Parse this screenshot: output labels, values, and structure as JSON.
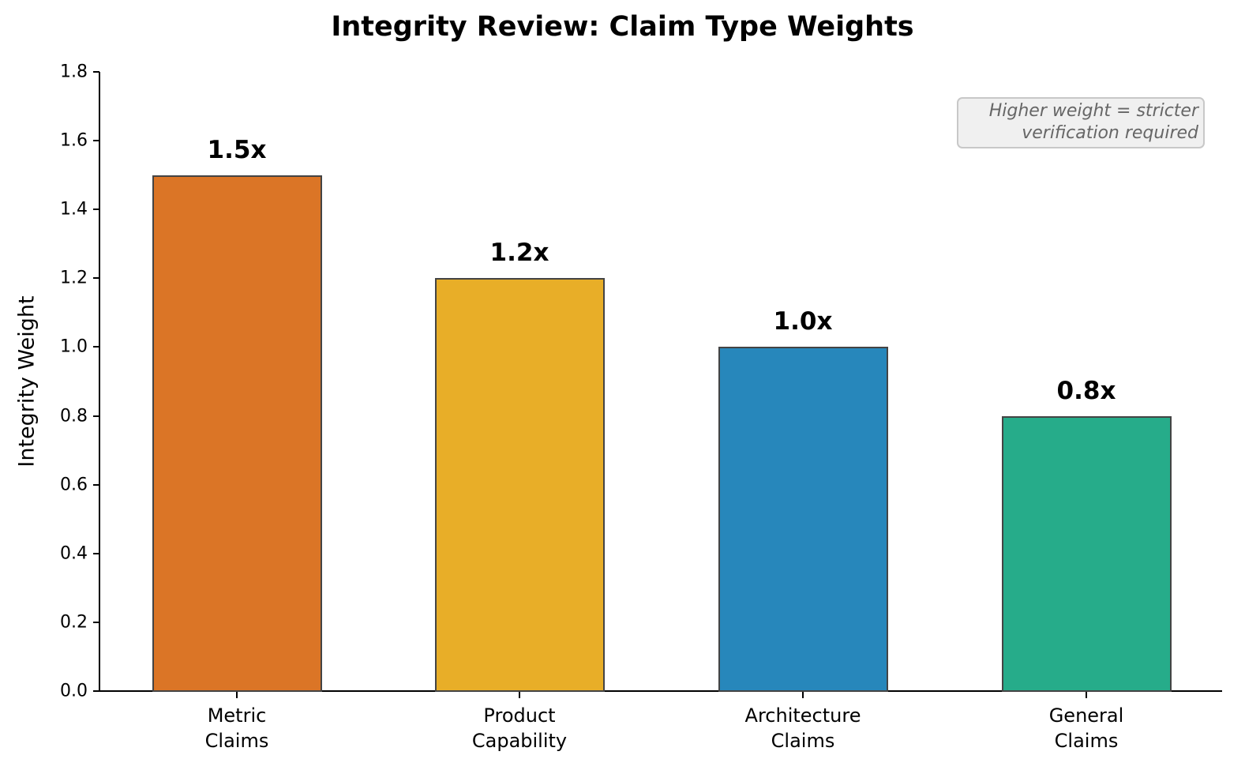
{
  "chart_data": {
    "type": "bar",
    "title": "Integrity Review: Claim Type Weights",
    "xlabel": "",
    "ylabel": "Integrity Weight",
    "ylim": [
      0,
      1.8
    ],
    "yticks": [
      "0.0",
      "0.2",
      "0.4",
      "0.6",
      "0.8",
      "1.0",
      "1.2",
      "1.4",
      "1.6",
      "1.8"
    ],
    "categories": [
      "Metric\nClaims",
      "Product\nCapability",
      "Architecture\nClaims",
      "General\nClaims"
    ],
    "values": [
      1.5,
      1.2,
      1.0,
      0.8
    ],
    "value_labels": [
      "1.5x",
      "1.2x",
      "1.0x",
      "0.8x"
    ],
    "colors": [
      "#db7526",
      "#e8ae28",
      "#2787bb",
      "#26ac8a"
    ],
    "annotation": "Higher weight = stricter\nverification required",
    "grid": false,
    "legend": null
  }
}
